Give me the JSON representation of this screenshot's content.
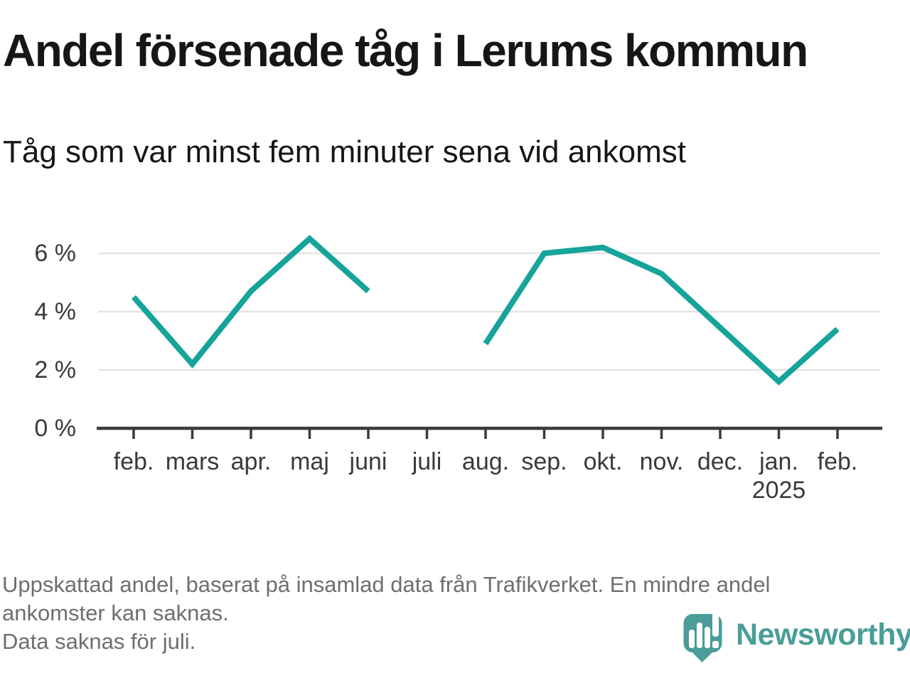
{
  "header": {
    "title": "Andel försenade tåg i Lerums kommun",
    "subtitle": "Tåg som var minst fem minuter sena vid ankomst"
  },
  "chart_data": {
    "type": "line",
    "title": "Andel försenade tåg i Lerums kommun",
    "subtitle": "Tåg som var minst fem minuter sena vid ankomst",
    "unit": "%",
    "categories": [
      "feb.",
      "mars",
      "apr.",
      "maj",
      "juni",
      "juli",
      "aug.",
      "sep.",
      "okt.",
      "nov.",
      "dec.",
      "jan.",
      "feb."
    ],
    "secondary_tick_labels": {
      "11": "2025"
    },
    "series": [
      {
        "name": "Andel försenade tåg",
        "values": [
          4.5,
          2.2,
          4.7,
          6.5,
          4.7,
          null,
          2.9,
          6.0,
          6.2,
          5.3,
          3.45,
          1.6,
          3.4
        ]
      }
    ],
    "missing_data_categories": [
      "juli"
    ],
    "y_ticks": [
      0,
      2,
      4,
      6
    ],
    "y_tick_labels": [
      "0 %",
      "2 %",
      "4 %",
      "6 %"
    ],
    "ylim": [
      0,
      7.3
    ],
    "grid": "horizontal",
    "legend": "none",
    "line_color": "#16a49a"
  },
  "footer": {
    "lines": [
      "Uppskattad andel, baserat på insamlad data från Trafikverket. En mindre andel",
      "ankomster kan saknas.",
      "Data saknas för juli."
    ]
  },
  "logo": {
    "wordmark": "Newsworthy",
    "icon": "newsworthy-badge-bar-chart-icon"
  },
  "colors": {
    "background": "#ffffff",
    "title_text": "#161616",
    "axis_line": "#3b3b3b",
    "axis_label": "#3a3a3a",
    "gridline": "#e3e3e3",
    "line": "#16a49a",
    "footer_text": "#6e6e6e",
    "logo": "#4a9d98"
  }
}
